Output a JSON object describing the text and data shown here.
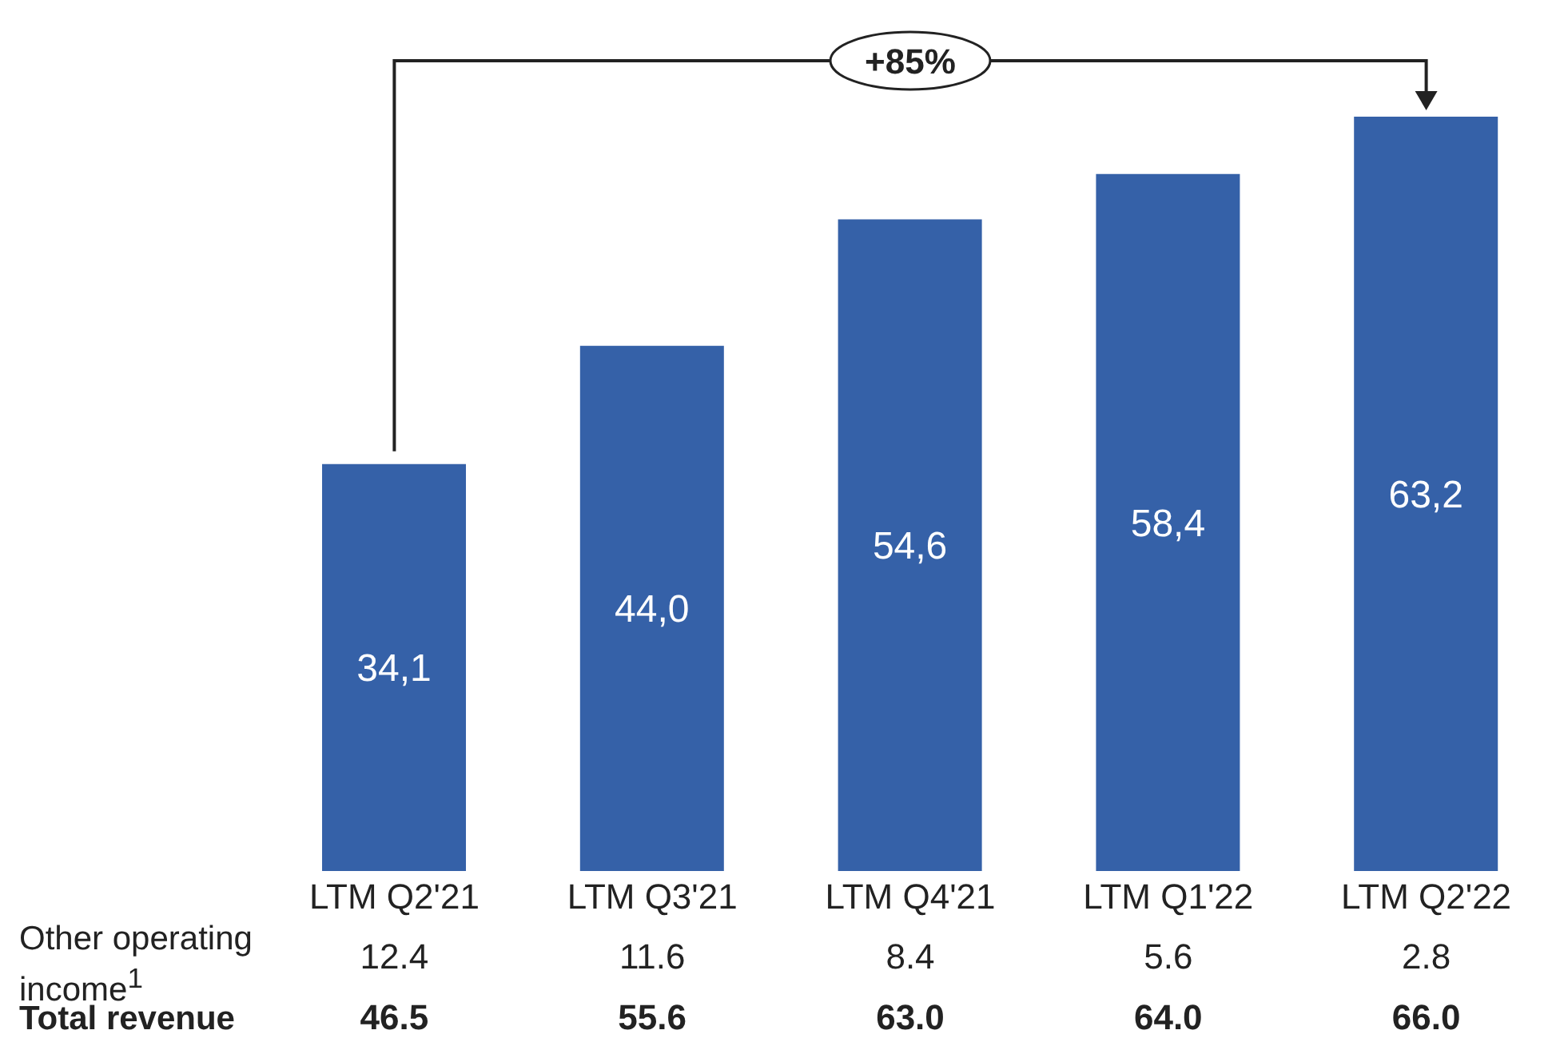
{
  "chart_data": {
    "type": "bar",
    "categories": [
      "LTM Q2'21",
      "LTM Q3'21",
      "LTM Q4'21",
      "LTM Q1'22",
      "LTM Q2'22"
    ],
    "values": [
      34.1,
      44.0,
      54.6,
      58.4,
      63.2
    ],
    "color": "#3561a8",
    "value_labels": [
      "34,1",
      "44,0",
      "54,6",
      "58,4",
      "63,2"
    ],
    "annotations": [
      "+85%",
      "Other operating income$^{1}$",
      "12.4",
      "11.6",
      "8.4",
      "5.6",
      "2.8",
      "Total revenue",
      "46.5",
      "55.6",
      "63.0",
      "64.0",
      "66.0"
    ]
  }
}
